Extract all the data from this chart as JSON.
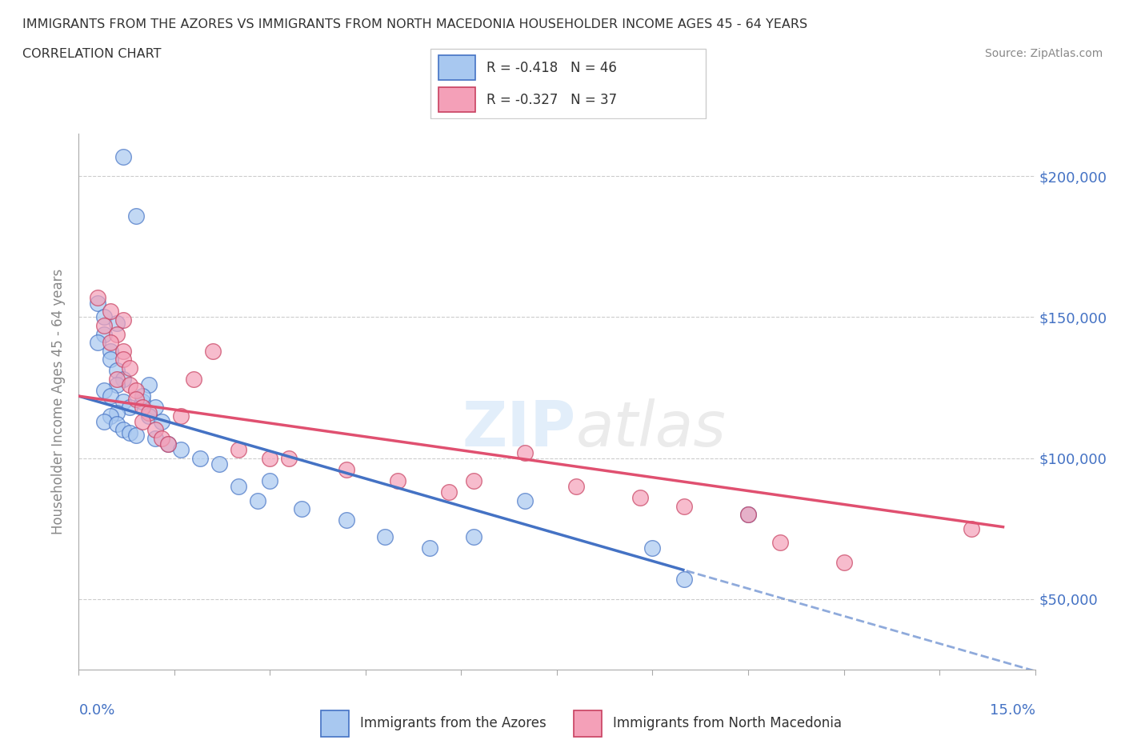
{
  "title_line1": "IMMIGRANTS FROM THE AZORES VS IMMIGRANTS FROM NORTH MACEDONIA HOUSEHOLDER INCOME AGES 45 - 64 YEARS",
  "title_line2": "CORRELATION CHART",
  "source_text": "Source: ZipAtlas.com",
  "ylabel": "Householder Income Ages 45 - 64 years",
  "y_ticks": [
    50000,
    100000,
    150000,
    200000
  ],
  "y_tick_labels": [
    "$50,000",
    "$100,000",
    "$150,000",
    "$200,000"
  ],
  "xlim": [
    0.0,
    0.15
  ],
  "ylim": [
    25000,
    215000
  ],
  "legend_azores": "R = -0.418   N = 46",
  "legend_macedonia": "R = -0.327   N = 37",
  "color_azores": "#A8C8F0",
  "color_macedonia": "#F4A0B8",
  "color_azores_line": "#4472C4",
  "color_macedonia_line": "#E05070",
  "watermark_zip": "ZIP",
  "watermark_atlas": "atlas",
  "azores_x": [
    0.007,
    0.009,
    0.003,
    0.004,
    0.006,
    0.004,
    0.003,
    0.005,
    0.005,
    0.006,
    0.007,
    0.006,
    0.004,
    0.005,
    0.007,
    0.008,
    0.006,
    0.005,
    0.004,
    0.006,
    0.007,
    0.008,
    0.009,
    0.01,
    0.011,
    0.01,
    0.012,
    0.011,
    0.013,
    0.012,
    0.014,
    0.016,
    0.019,
    0.022,
    0.025,
    0.03,
    0.028,
    0.035,
    0.042,
    0.048,
    0.055,
    0.062,
    0.07,
    0.09,
    0.095,
    0.105
  ],
  "azores_y": [
    207000,
    186000,
    155000,
    150000,
    148000,
    144000,
    141000,
    138000,
    135000,
    131000,
    128000,
    126000,
    124000,
    122000,
    120000,
    118000,
    116000,
    115000,
    113000,
    112000,
    110000,
    109000,
    108000,
    120000,
    126000,
    122000,
    118000,
    115000,
    113000,
    107000,
    105000,
    103000,
    100000,
    98000,
    90000,
    92000,
    85000,
    82000,
    78000,
    72000,
    68000,
    72000,
    85000,
    68000,
    57000,
    80000
  ],
  "macedonia_x": [
    0.003,
    0.005,
    0.007,
    0.004,
    0.006,
    0.005,
    0.007,
    0.007,
    0.008,
    0.006,
    0.008,
    0.009,
    0.009,
    0.01,
    0.011,
    0.01,
    0.012,
    0.013,
    0.014,
    0.016,
    0.018,
    0.021,
    0.025,
    0.03,
    0.033,
    0.042,
    0.05,
    0.058,
    0.062,
    0.07,
    0.078,
    0.088,
    0.095,
    0.105,
    0.11,
    0.12,
    0.14
  ],
  "macedonia_y": [
    157000,
    152000,
    149000,
    147000,
    144000,
    141000,
    138000,
    135000,
    132000,
    128000,
    126000,
    124000,
    121000,
    118000,
    116000,
    113000,
    110000,
    107000,
    105000,
    115000,
    128000,
    138000,
    103000,
    100000,
    100000,
    96000,
    92000,
    88000,
    92000,
    102000,
    90000,
    86000,
    83000,
    80000,
    70000,
    63000,
    75000
  ]
}
